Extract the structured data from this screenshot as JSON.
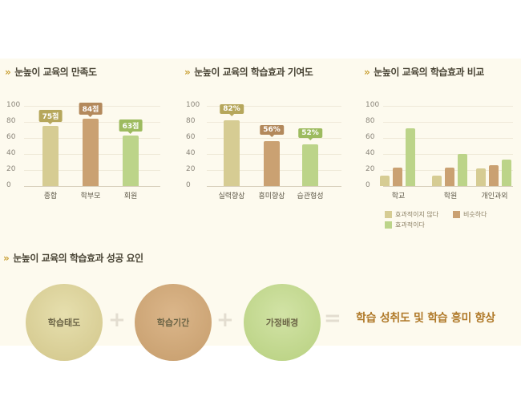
{
  "colors": {
    "tan": "#d6cc93",
    "brown": "#caa172",
    "green": "#bcd489",
    "tan_dark": "#b6a75c",
    "brown_dark": "#b3895c",
    "green_dark": "#9dbb5f"
  },
  "chart_data": [
    {
      "type": "bar",
      "title": "눈높이 교육의 만족도",
      "categories": [
        "종합",
        "학부모",
        "회원"
      ],
      "values": [
        75,
        84,
        63
      ],
      "value_labels": [
        "75점",
        "84점",
        "63점"
      ],
      "yticks": [
        "100",
        "80",
        "60",
        "40",
        "20",
        "0"
      ],
      "ylim": [
        0,
        100
      ]
    },
    {
      "type": "bar",
      "title": "눈높이 교육의 학습효과 기여도",
      "categories": [
        "실력향상",
        "흥미향상",
        "습관형성"
      ],
      "values": [
        82,
        56,
        52
      ],
      "value_labels": [
        "82%",
        "56%",
        "52%"
      ],
      "yticks": [
        "100",
        "80",
        "60",
        "40",
        "20",
        "0"
      ],
      "ylim": [
        0,
        100
      ]
    },
    {
      "type": "bar",
      "title": "눈높이 교육의 학습효과 비교",
      "categories": [
        "학교",
        "학원",
        "개인과외"
      ],
      "series": [
        {
          "name": "효과적이지 않다",
          "values": [
            13,
            13,
            22
          ]
        },
        {
          "name": "비슷하다",
          "values": [
            23,
            23,
            26
          ]
        },
        {
          "name": "효과적이다",
          "values": [
            72,
            40,
            33
          ]
        }
      ],
      "yticks": [
        "100",
        "80",
        "60",
        "40",
        "20",
        "0"
      ],
      "ylim": [
        0,
        100
      ],
      "legend": "bottom"
    }
  ],
  "factors": {
    "title": "눈높이 교육의 학습효과 성공 요인",
    "items": [
      "학습태도",
      "학습기간",
      "가정배경"
    ],
    "plus": "+",
    "equals": "=",
    "result": "학습 성취도 및 학습 흥미 향상"
  }
}
